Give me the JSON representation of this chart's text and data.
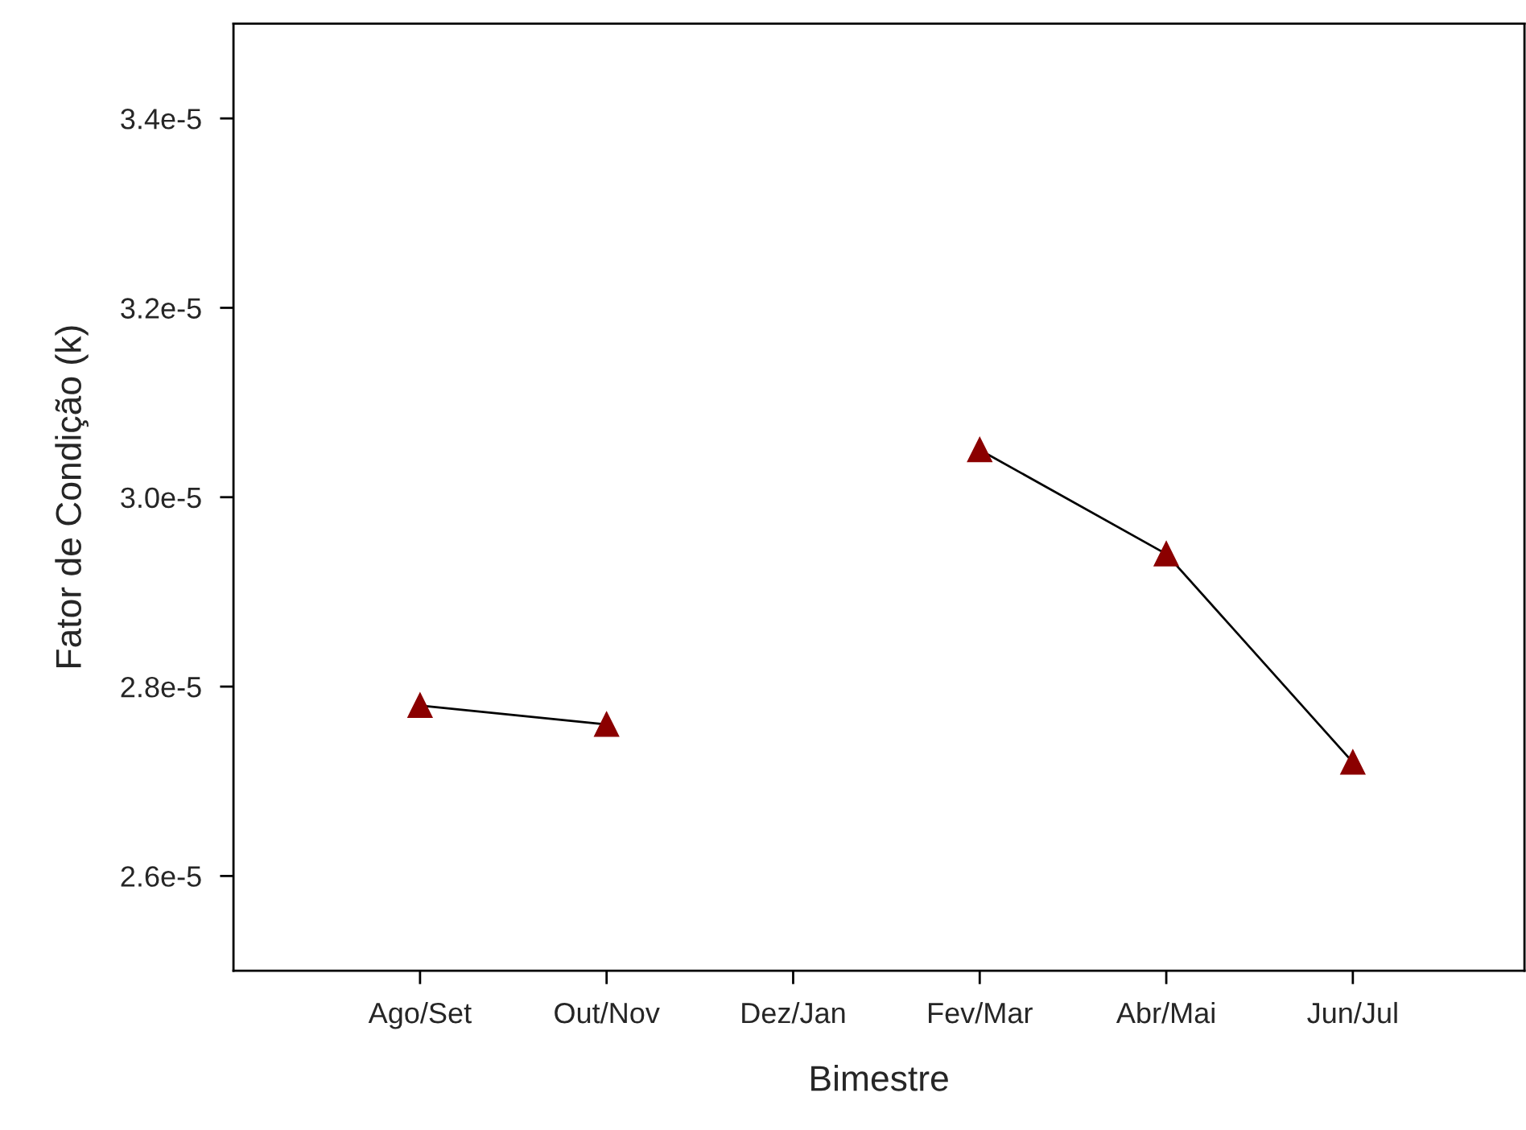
{
  "chart_data": {
    "type": "line",
    "xlabel": "Bimestre",
    "ylabel": "Fator de Condição (k)",
    "categories": [
      "Ago/Set",
      "Out/Nov",
      "Dez/Jan",
      "Fev/Mar",
      "Abr/Mai",
      "Jun/Jul"
    ],
    "series": [
      {
        "color": "#8b0000",
        "values": [
          2.78e-05,
          2.76e-05,
          null,
          3.05e-05,
          2.94e-05,
          2.72e-05
        ]
      }
    ],
    "marker": "triangle",
    "line_style": "solid",
    "ylim": [
      2.5e-05,
      3.5e-05
    ],
    "yticks": [
      {
        "value": 2.6e-05,
        "label": "2.6e-5"
      },
      {
        "value": 2.8e-05,
        "label": "2.8e-5"
      },
      {
        "value": 3e-05,
        "label": "3.0e-5"
      },
      {
        "value": 3.2e-05,
        "label": "3.2e-5"
      },
      {
        "value": 3.4e-05,
        "label": "3.4e-5"
      }
    ],
    "grid": false
  }
}
